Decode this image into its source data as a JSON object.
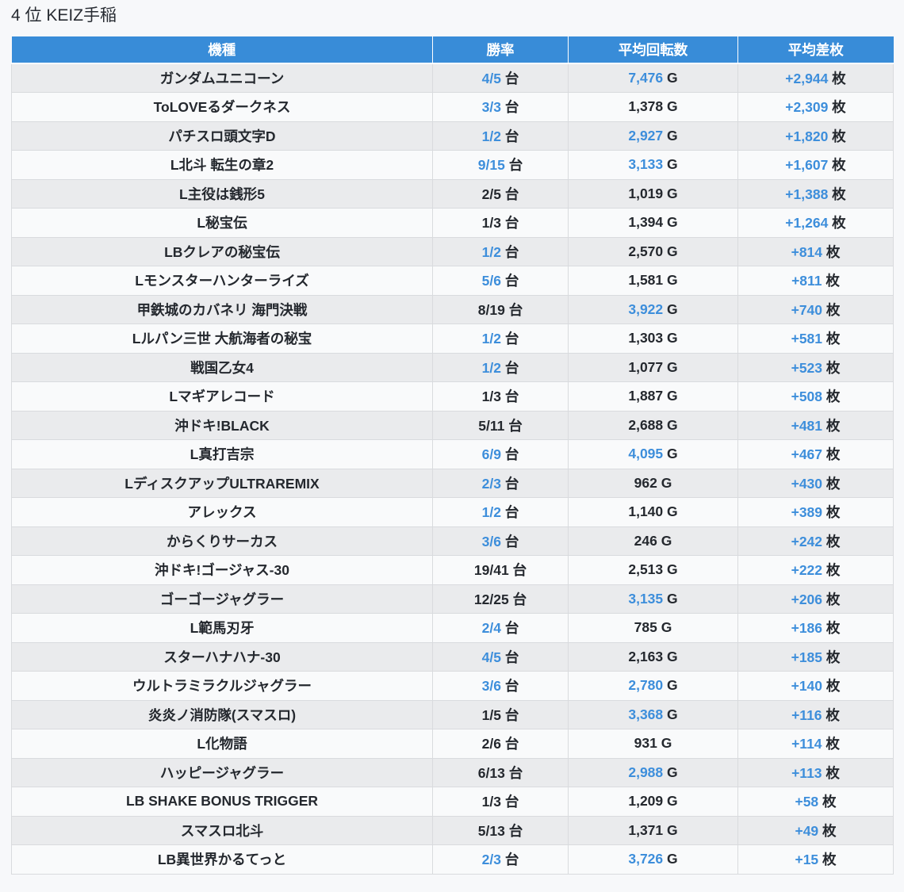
{
  "page": {
    "title": "4 位 KEIZ手稲"
  },
  "colors": {
    "page_bg": "#f7f8fa",
    "header_bg": "#388cd8",
    "header_text": "#ffffff",
    "accent_text": "#3d8edb",
    "dark_text": "#24282e",
    "row_odd": "#eaebed",
    "row_even": "#f9fafb",
    "border": "#d9dbde",
    "header_border": "#ffffff"
  },
  "table": {
    "columns": [
      "機種",
      "勝率",
      "平均回転数",
      "平均差枚"
    ],
    "units": {
      "rate": "台",
      "spins": "G",
      "diff": "枚"
    },
    "rows": [
      {
        "name": "ガンダムユニコーン",
        "rate": "4/5",
        "rate_hl": true,
        "spins": "7,476",
        "spins_hl": true,
        "diff": "+2,944",
        "diff_hl": true
      },
      {
        "name": "ToLOVEるダークネス",
        "rate": "3/3",
        "rate_hl": true,
        "spins": "1,378",
        "spins_hl": false,
        "diff": "+2,309",
        "diff_hl": true
      },
      {
        "name": "パチスロ頭文字D",
        "rate": "1/2",
        "rate_hl": true,
        "spins": "2,927",
        "spins_hl": true,
        "diff": "+1,820",
        "diff_hl": true
      },
      {
        "name": "L北斗 転生の章2",
        "rate": "9/15",
        "rate_hl": true,
        "spins": "3,133",
        "spins_hl": true,
        "diff": "+1,607",
        "diff_hl": true
      },
      {
        "name": "L主役は銭形5",
        "rate": "2/5",
        "rate_hl": false,
        "spins": "1,019",
        "spins_hl": false,
        "diff": "+1,388",
        "diff_hl": true
      },
      {
        "name": "L秘宝伝",
        "rate": "1/3",
        "rate_hl": false,
        "spins": "1,394",
        "spins_hl": false,
        "diff": "+1,264",
        "diff_hl": true
      },
      {
        "name": "LBクレアの秘宝伝",
        "rate": "1/2",
        "rate_hl": true,
        "spins": "2,570",
        "spins_hl": false,
        "diff": "+814",
        "diff_hl": true
      },
      {
        "name": "Lモンスターハンターライズ",
        "rate": "5/6",
        "rate_hl": true,
        "spins": "1,581",
        "spins_hl": false,
        "diff": "+811",
        "diff_hl": true
      },
      {
        "name": "甲鉄城のカバネリ 海門決戦",
        "rate": "8/19",
        "rate_hl": false,
        "spins": "3,922",
        "spins_hl": true,
        "diff": "+740",
        "diff_hl": true
      },
      {
        "name": "Lルパン三世 大航海者の秘宝",
        "rate": "1/2",
        "rate_hl": true,
        "spins": "1,303",
        "spins_hl": false,
        "diff": "+581",
        "diff_hl": true
      },
      {
        "name": "戦国乙女4",
        "rate": "1/2",
        "rate_hl": true,
        "spins": "1,077",
        "spins_hl": false,
        "diff": "+523",
        "diff_hl": true
      },
      {
        "name": "Lマギアレコード",
        "rate": "1/3",
        "rate_hl": false,
        "spins": "1,887",
        "spins_hl": false,
        "diff": "+508",
        "diff_hl": true
      },
      {
        "name": "沖ドキ!BLACK",
        "rate": "5/11",
        "rate_hl": false,
        "spins": "2,688",
        "spins_hl": false,
        "diff": "+481",
        "diff_hl": true
      },
      {
        "name": "L真打吉宗",
        "rate": "6/9",
        "rate_hl": true,
        "spins": "4,095",
        "spins_hl": true,
        "diff": "+467",
        "diff_hl": true
      },
      {
        "name": "LディスクアップULTRAREMIX",
        "rate": "2/3",
        "rate_hl": true,
        "spins": "962",
        "spins_hl": false,
        "diff": "+430",
        "diff_hl": true
      },
      {
        "name": "アレックス",
        "rate": "1/2",
        "rate_hl": true,
        "spins": "1,140",
        "spins_hl": false,
        "diff": "+389",
        "diff_hl": true
      },
      {
        "name": "からくりサーカス",
        "rate": "3/6",
        "rate_hl": true,
        "spins": "246",
        "spins_hl": false,
        "diff": "+242",
        "diff_hl": true
      },
      {
        "name": "沖ドキ!ゴージャス-30",
        "rate": "19/41",
        "rate_hl": false,
        "spins": "2,513",
        "spins_hl": false,
        "diff": "+222",
        "diff_hl": true
      },
      {
        "name": "ゴーゴージャグラー",
        "rate": "12/25",
        "rate_hl": false,
        "spins": "3,135",
        "spins_hl": true,
        "diff": "+206",
        "diff_hl": true
      },
      {
        "name": "L範馬刃牙",
        "rate": "2/4",
        "rate_hl": true,
        "spins": "785",
        "spins_hl": false,
        "diff": "+186",
        "diff_hl": true
      },
      {
        "name": "スターハナハナ-30",
        "rate": "4/5",
        "rate_hl": true,
        "spins": "2,163",
        "spins_hl": false,
        "diff": "+185",
        "diff_hl": true
      },
      {
        "name": "ウルトラミラクルジャグラー",
        "rate": "3/6",
        "rate_hl": true,
        "spins": "2,780",
        "spins_hl": true,
        "diff": "+140",
        "diff_hl": true
      },
      {
        "name": "炎炎ノ消防隊(スマスロ)",
        "rate": "1/5",
        "rate_hl": false,
        "spins": "3,368",
        "spins_hl": true,
        "diff": "+116",
        "diff_hl": true
      },
      {
        "name": "L化物語",
        "rate": "2/6",
        "rate_hl": false,
        "spins": "931",
        "spins_hl": false,
        "diff": "+114",
        "diff_hl": true
      },
      {
        "name": "ハッピージャグラー",
        "rate": "6/13",
        "rate_hl": false,
        "spins": "2,988",
        "spins_hl": true,
        "diff": "+113",
        "diff_hl": true
      },
      {
        "name": "LB SHAKE BONUS TRIGGER",
        "rate": "1/3",
        "rate_hl": false,
        "spins": "1,209",
        "spins_hl": false,
        "diff": "+58",
        "diff_hl": true
      },
      {
        "name": "スマスロ北斗",
        "rate": "5/13",
        "rate_hl": false,
        "spins": "1,371",
        "spins_hl": false,
        "diff": "+49",
        "diff_hl": true
      },
      {
        "name": "LB異世界かるてっと",
        "rate": "2/3",
        "rate_hl": true,
        "spins": "3,726",
        "spins_hl": true,
        "diff": "+15",
        "diff_hl": true
      }
    ]
  }
}
